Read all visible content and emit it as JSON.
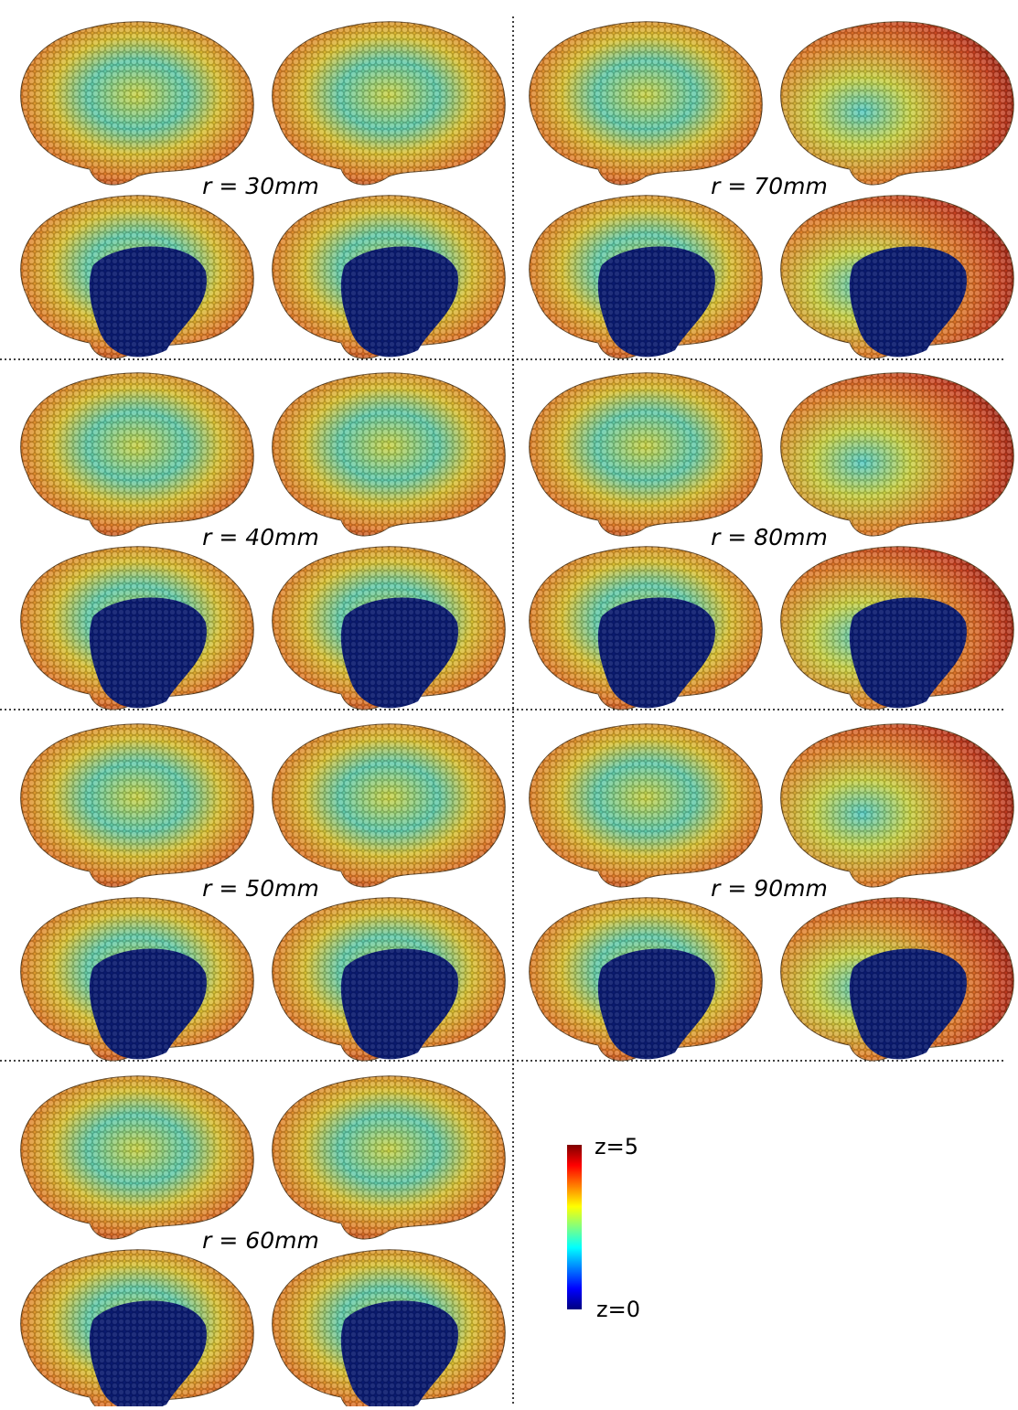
{
  "panels": [
    {
      "label": "r = 30mm"
    },
    {
      "label": "r = 70mm"
    },
    {
      "label": "r = 40mm"
    },
    {
      "label": "r = 80mm"
    },
    {
      "label": "r = 50mm"
    },
    {
      "label": "r = 90mm"
    },
    {
      "label": "r = 60mm"
    }
  ],
  "colorbar": {
    "max_label": "z=5",
    "min_label": "z=0"
  }
}
